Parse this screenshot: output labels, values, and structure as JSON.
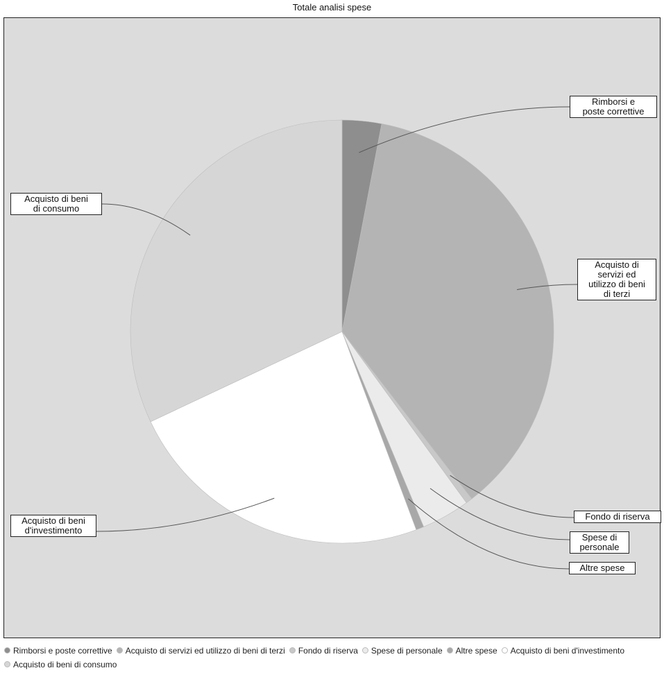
{
  "chart_data": {
    "type": "pie",
    "title": "Totale analisi spese",
    "start_angle_deg": 0,
    "direction": "clockwise",
    "slices": [
      {
        "label": "Rimborsi e\nposte correttive",
        "legend": "Rimborsi e poste correttive",
        "value": 3.0,
        "color": "#8e8e8e"
      },
      {
        "label": "Acquisto di\nservizi ed\nutilizzo di beni\ndi terzi",
        "legend": "Acquisto di servizi ed utilizzo di beni di terzi",
        "value": 36.5,
        "color": "#b4b4b4"
      },
      {
        "label": "Fondo di riserva",
        "legend": "Fondo di riserva",
        "value": 0.5,
        "color": "#c8c8c8"
      },
      {
        "label": "Spese di\npersonale",
        "legend": "Spese di personale",
        "value": 3.7,
        "color": "#ebebeb"
      },
      {
        "label": "Altre spese",
        "legend": "Altre spese",
        "value": 0.6,
        "color": "#a8a8a8"
      },
      {
        "label": "Acquisto di beni\nd'investimento",
        "legend": "Acquisto di beni d'investimento",
        "value": 23.7,
        "color": "#ffffff"
      },
      {
        "label": "Acquisto di beni\ndi consumo",
        "legend": "Acquisto di beni di consumo",
        "value": 32.0,
        "color": "#d6d6d6"
      }
    ]
  }
}
